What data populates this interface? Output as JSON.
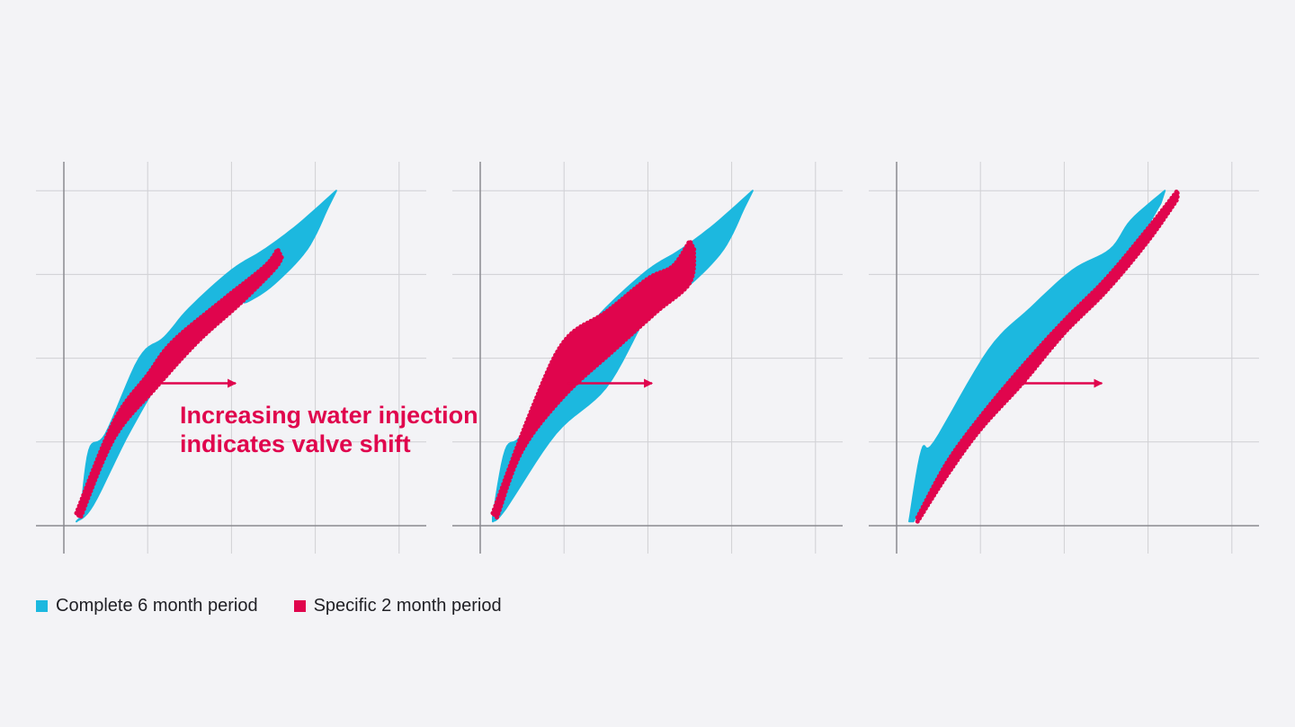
{
  "annotation": {
    "line1": "Increasing water injection",
    "line2": "indicates valve shift"
  },
  "legend": [
    {
      "label": "Complete 6 month period",
      "color": "#1cb8df"
    },
    {
      "label": "Specific 2 month period",
      "color": "#e0054d"
    }
  ],
  "colors": {
    "complete": "#1cb8df",
    "specific": "#e0054d",
    "arrow": "#e0054d",
    "grid": "#d0d0d4",
    "axis": "#8a8a8f"
  },
  "chart_data": [
    {
      "type": "scatter",
      "title": "",
      "xlabel": "",
      "ylabel": "",
      "xlim": [
        0,
        4
      ],
      "ylim": [
        0,
        4
      ],
      "grid": true,
      "arrow": {
        "from": [
          1.05,
          1.7
        ],
        "to": [
          2.05,
          1.7
        ]
      },
      "series": [
        {
          "name": "Complete 6 month period",
          "kind": "band",
          "upper": [
            [
              0.2,
              0.1
            ],
            [
              0.3,
              0.9
            ],
            [
              0.5,
              1.1
            ],
            [
              0.9,
              2.0
            ],
            [
              1.2,
              2.25
            ],
            [
              1.5,
              2.6
            ],
            [
              2.0,
              3.05
            ],
            [
              2.4,
              3.3
            ],
            [
              2.8,
              3.6
            ],
            [
              3.25,
              4.0
            ]
          ],
          "lower": [
            [
              0.15,
              0.05
            ],
            [
              0.35,
              0.25
            ],
            [
              0.8,
              1.15
            ],
            [
              1.3,
              1.95
            ],
            [
              2.0,
              2.6
            ],
            [
              2.2,
              2.68
            ],
            [
              2.5,
              2.88
            ],
            [
              2.9,
              3.3
            ],
            [
              3.15,
              3.8
            ]
          ]
        },
        {
          "name": "Specific 2 month period",
          "kind": "band",
          "upper": [
            [
              0.15,
              0.15
            ],
            [
              0.6,
              1.25
            ],
            [
              1.0,
              1.8
            ],
            [
              1.3,
              2.2
            ],
            [
              1.9,
              2.7
            ],
            [
              2.4,
              3.1
            ],
            [
              2.55,
              3.3
            ]
          ],
          "lower": [
            [
              0.2,
              0.1
            ],
            [
              0.6,
              1.05
            ],
            [
              1.1,
              1.65
            ],
            [
              1.6,
              2.2
            ],
            [
              2.1,
              2.65
            ],
            [
              2.5,
              3.05
            ],
            [
              2.6,
              3.2
            ]
          ]
        }
      ]
    },
    {
      "type": "scatter",
      "title": "",
      "xlabel": "",
      "ylabel": "",
      "xlim": [
        0,
        4
      ],
      "ylim": [
        0,
        4
      ],
      "grid": true,
      "arrow": {
        "from": [
          1.05,
          1.7
        ],
        "to": [
          2.05,
          1.7
        ]
      },
      "series": [
        {
          "name": "Complete 6 month period",
          "kind": "band",
          "upper": [
            [
              0.15,
              0.1
            ],
            [
              0.3,
              0.9
            ],
            [
              0.5,
              1.1
            ],
            [
              0.9,
              2.0
            ],
            [
              1.2,
              2.25
            ],
            [
              1.5,
              2.6
            ],
            [
              2.0,
              3.05
            ],
            [
              2.4,
              3.3
            ],
            [
              2.8,
              3.6
            ],
            [
              3.25,
              4.0
            ]
          ],
          "lower": [
            [
              0.15,
              0.05
            ],
            [
              0.3,
              0.2
            ],
            [
              0.9,
              1.1
            ],
            [
              1.5,
              1.65
            ],
            [
              1.95,
              2.45
            ],
            [
              2.1,
              2.6
            ],
            [
              2.5,
              2.88
            ],
            [
              2.9,
              3.3
            ],
            [
              3.15,
              3.8
            ]
          ]
        },
        {
          "name": "Specific 2 month period",
          "kind": "band",
          "upper": [
            [
              0.15,
              0.15
            ],
            [
              0.6,
              1.35
            ],
            [
              1.0,
              2.2
            ],
            [
              1.5,
              2.55
            ],
            [
              2.0,
              2.95
            ],
            [
              2.3,
              3.1
            ],
            [
              2.5,
              3.4
            ]
          ],
          "lower": [
            [
              0.2,
              0.1
            ],
            [
              0.5,
              0.9
            ],
            [
              1.0,
              1.55
            ],
            [
              1.6,
              2.1
            ],
            [
              2.1,
              2.55
            ],
            [
              2.5,
              2.9
            ],
            [
              2.55,
              3.3
            ]
          ]
        }
      ]
    },
    {
      "type": "scatter",
      "title": "",
      "xlabel": "",
      "ylabel": "",
      "xlim": [
        0,
        4
      ],
      "ylim": [
        0,
        4
      ],
      "grid": true,
      "arrow": {
        "from": [
          1.45,
          1.7
        ],
        "to": [
          2.45,
          1.7
        ]
      },
      "series": [
        {
          "name": "Complete 6 month period",
          "kind": "band",
          "upper": [
            [
              0.15,
              0.05
            ],
            [
              0.3,
              0.9
            ],
            [
              0.45,
              1.0
            ],
            [
              1.1,
              2.1
            ],
            [
              1.6,
              2.6
            ],
            [
              2.1,
              3.05
            ],
            [
              2.55,
              3.3
            ],
            [
              2.8,
              3.65
            ],
            [
              3.2,
              4.0
            ]
          ],
          "lower": [
            [
              0.2,
              0.05
            ],
            [
              0.5,
              0.6
            ],
            [
              1.0,
              1.2
            ],
            [
              1.5,
              1.8
            ],
            [
              2.0,
              2.4
            ],
            [
              2.6,
              2.95
            ],
            [
              3.15,
              3.85
            ]
          ]
        },
        {
          "name": "Specific 2 month period",
          "kind": "band",
          "upper": [
            [
              0.25,
              0.1
            ],
            [
              0.6,
              0.75
            ],
            [
              1.0,
              1.3
            ],
            [
              1.5,
              1.9
            ],
            [
              2.0,
              2.45
            ],
            [
              2.5,
              2.95
            ],
            [
              3.0,
              3.55
            ],
            [
              3.35,
              4.0
            ]
          ],
          "lower": [
            [
              0.25,
              0.05
            ],
            [
              0.6,
              0.6
            ],
            [
              1.0,
              1.15
            ],
            [
              1.5,
              1.7
            ],
            [
              2.0,
              2.3
            ],
            [
              2.5,
              2.8
            ],
            [
              3.0,
              3.4
            ],
            [
              3.35,
              3.9
            ]
          ]
        }
      ]
    }
  ]
}
